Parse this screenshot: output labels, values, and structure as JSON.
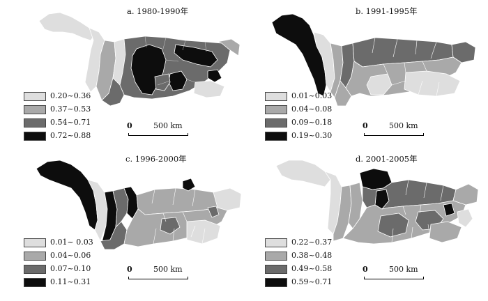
{
  "colors": {
    "class1": "#dedede",
    "class2": "#a9a9a9",
    "class3": "#6b6b6b",
    "class4": "#0d0d0d",
    "outline": "#ffffff"
  },
  "scale_bar": {
    "zero": "0",
    "distance": "500 km"
  },
  "panels": [
    {
      "title": "a. 1980-1990年",
      "legend": [
        "0.20~0.36",
        "0.37~0.53",
        "0.54~0.71",
        "0.72~0.88"
      ]
    },
    {
      "title": "b. 1991-1995年",
      "legend": [
        "0.01~0.03",
        "0.04~0.08",
        "0.09~0.18",
        "0.19~0.30"
      ]
    },
    {
      "title": "c. 1996-2000年",
      "legend": [
        "0.01~ 0.03",
        "0.04~0.06",
        "0.07~0.10",
        "0.11~0.31"
      ]
    },
    {
      "title": "d. 2001-2005年",
      "legend": [
        "0.22~0.37",
        "0.38~0.48",
        "0.49~0.58",
        "0.59~0.71"
      ]
    }
  ]
}
